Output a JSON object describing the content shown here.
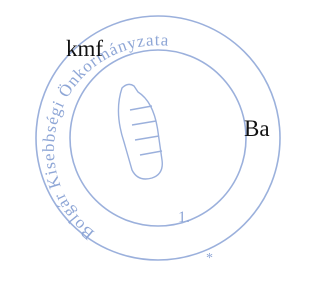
{
  "stamp": {
    "ring_text": "Bolgár Kisebbségi Önkormányzata",
    "number": "1.",
    "star": "*"
  },
  "document": {
    "signature_note": "kmf",
    "cut_text": "Ba"
  }
}
